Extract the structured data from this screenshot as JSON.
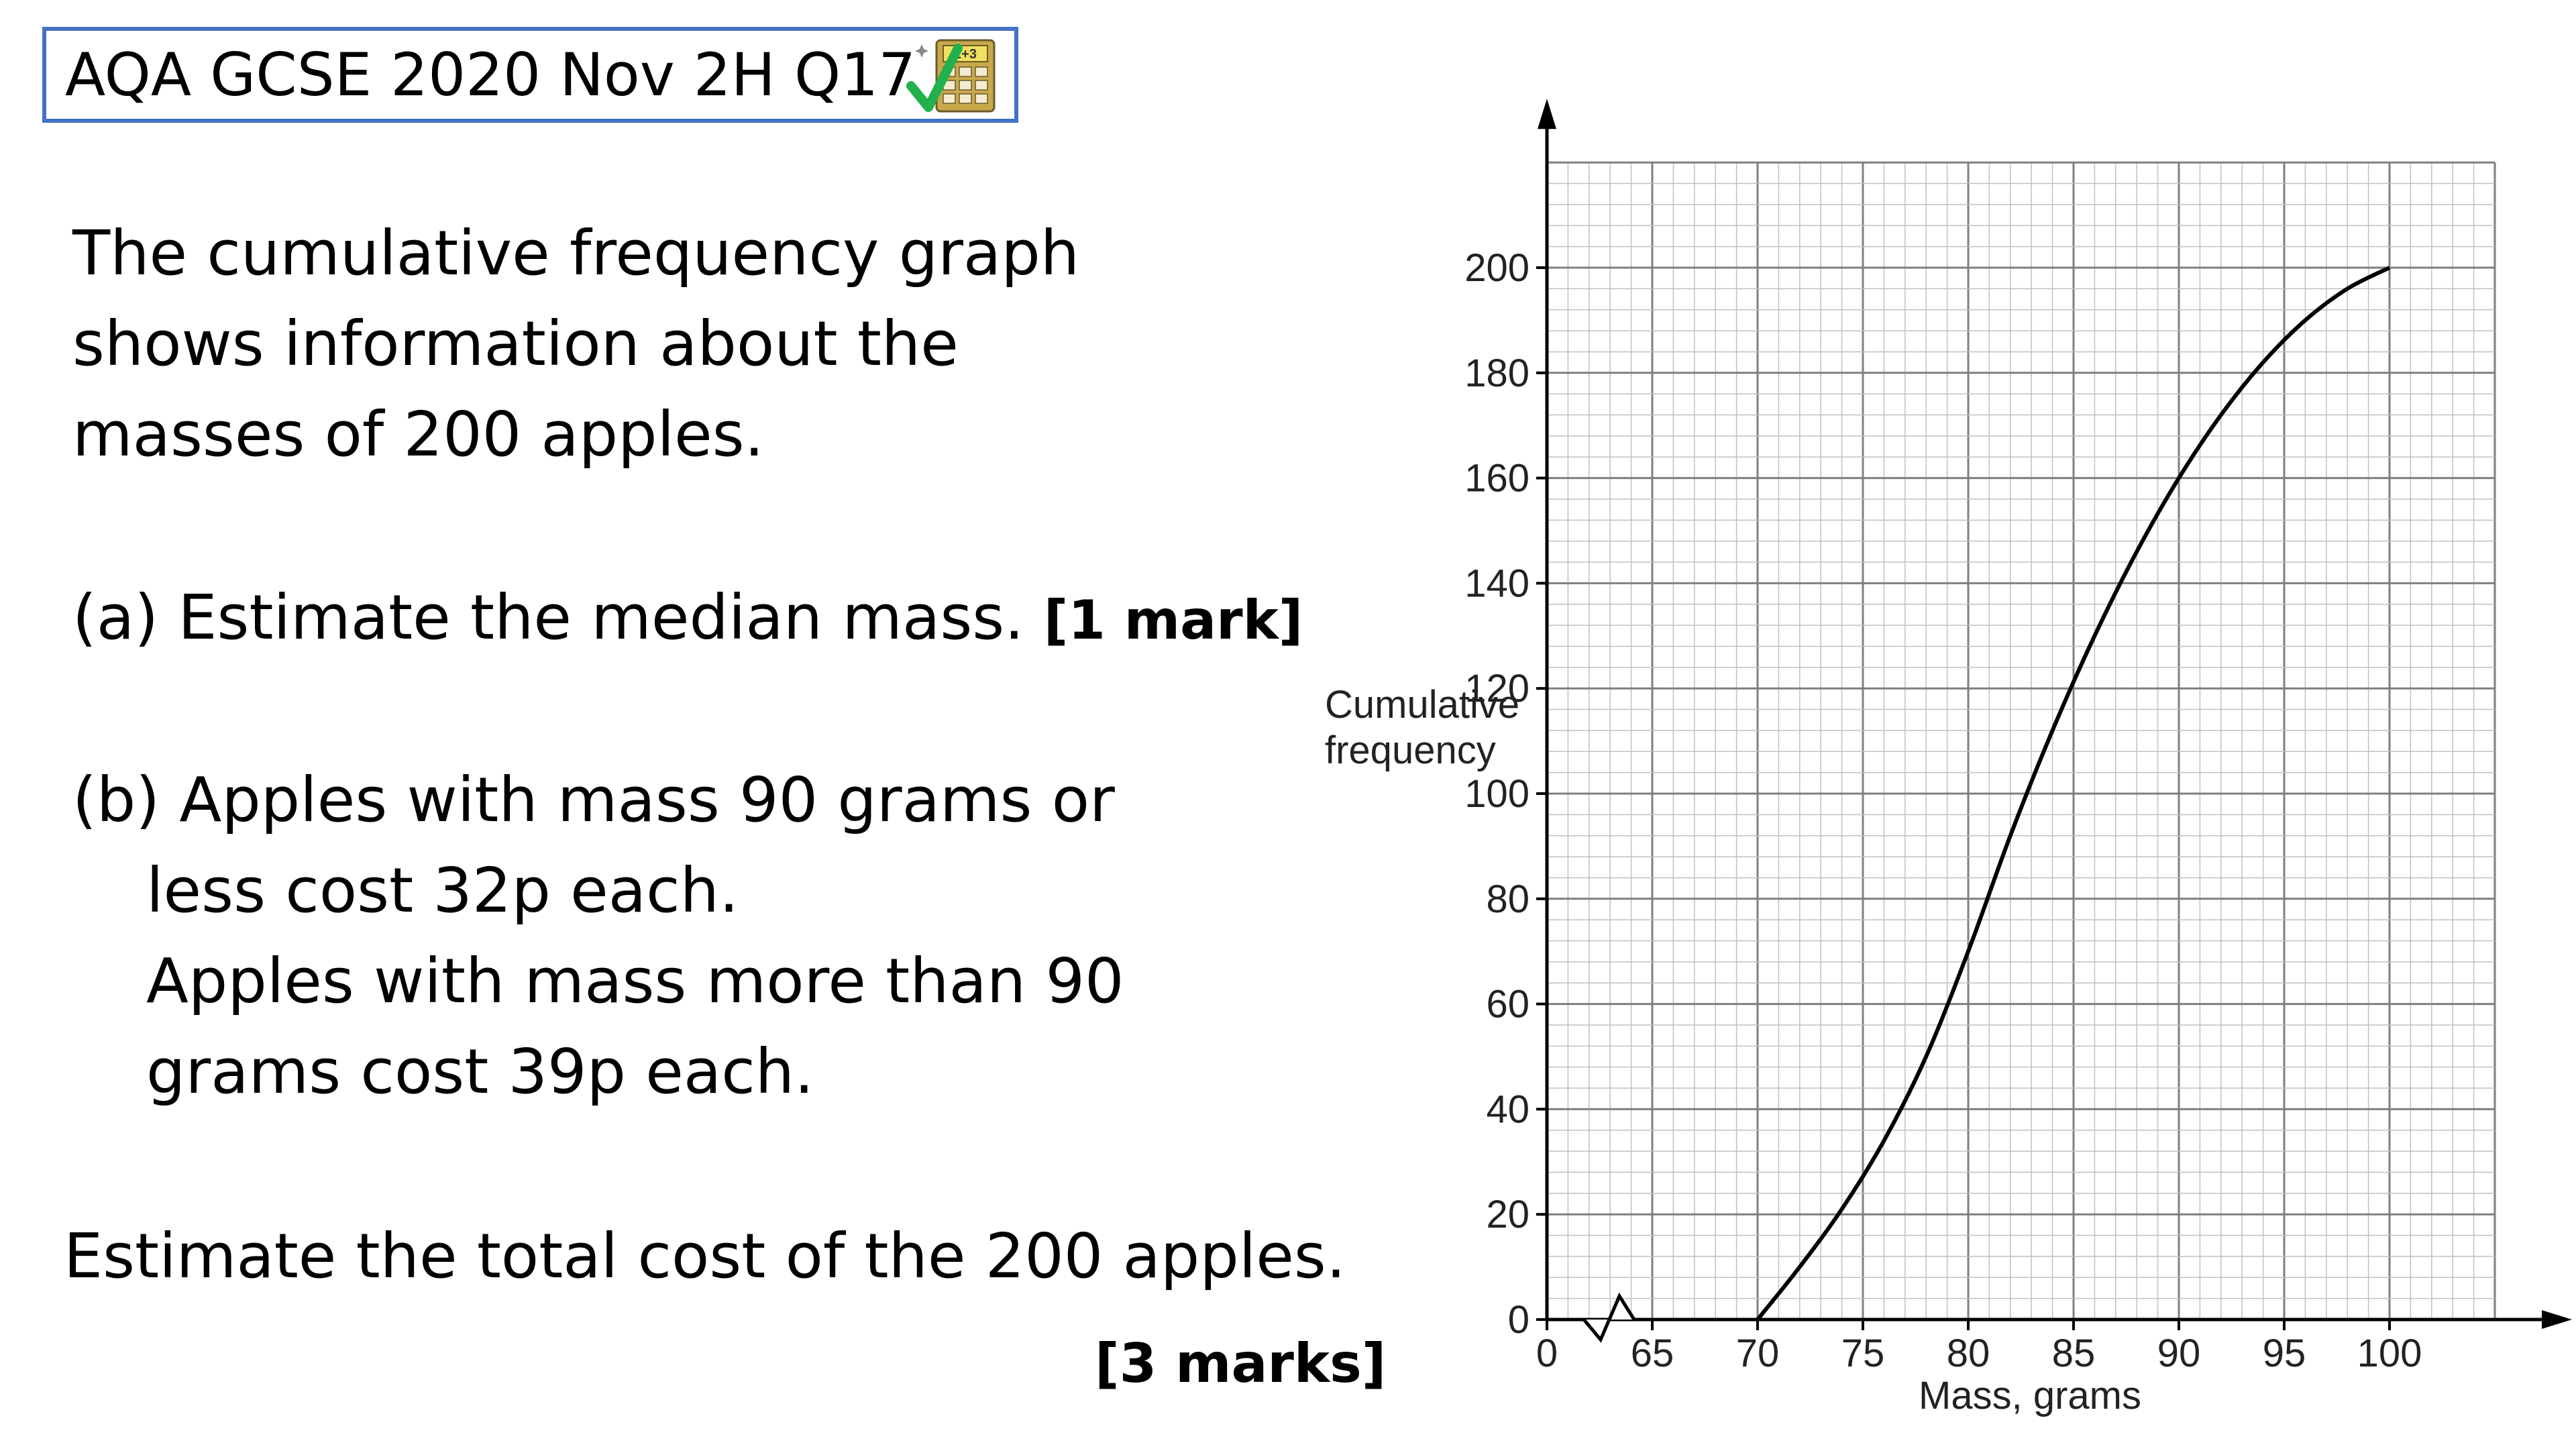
{
  "header": {
    "title": "AQA GCSE 2020 Nov 2H Q17",
    "icon": "calculator-with-checkmark-icon",
    "icon_colors": {
      "check": "#22b14c",
      "calculator": "#c8a84b",
      "display": "#f0e060"
    },
    "icon_display_text": "2+3",
    "border_color": "#4472c4"
  },
  "question": {
    "intro": [
      "The cumulative frequency graph",
      "shows information about the",
      "masses of 200 apples."
    ],
    "part_a": {
      "text": "(a) Estimate the median mass.",
      "marks": "[1 mark]"
    },
    "part_b": {
      "lines": [
        "(b) Apples with mass 90 grams or",
        "less cost 32p each.",
        "Apples with mass more than 90",
        "grams cost 39p each."
      ]
    },
    "task": "Estimate the total cost of the 200 apples.",
    "task_marks": "[3 marks]"
  },
  "chart_data": {
    "type": "line",
    "ylabel": [
      "Cumulative",
      "frequency"
    ],
    "xlabel": "Mass, grams",
    "x_ticks": [
      "0",
      "65",
      "70",
      "75",
      "80",
      "85",
      "90",
      "95",
      "100"
    ],
    "y_ticks": [
      "0",
      "20",
      "40",
      "60",
      "80",
      "100",
      "120",
      "140",
      "160",
      "180",
      "200"
    ],
    "xlim": [
      60,
      105
    ],
    "ylim": [
      0,
      220
    ],
    "axis_break": true,
    "grid": true,
    "series": [
      {
        "x": [
          70,
          72,
          74,
          76,
          78,
          80,
          82,
          84,
          86,
          88,
          90,
          92,
          94,
          96,
          98,
          100
        ],
        "y": [
          0,
          10,
          21,
          34,
          50,
          70,
          92,
          112,
          130,
          146,
          160,
          172,
          182,
          190,
          196,
          200
        ]
      }
    ],
    "colors": {
      "grid_minor": "#c0c0c0",
      "grid_major": "#7f7f7f",
      "curve": "#000000"
    }
  }
}
